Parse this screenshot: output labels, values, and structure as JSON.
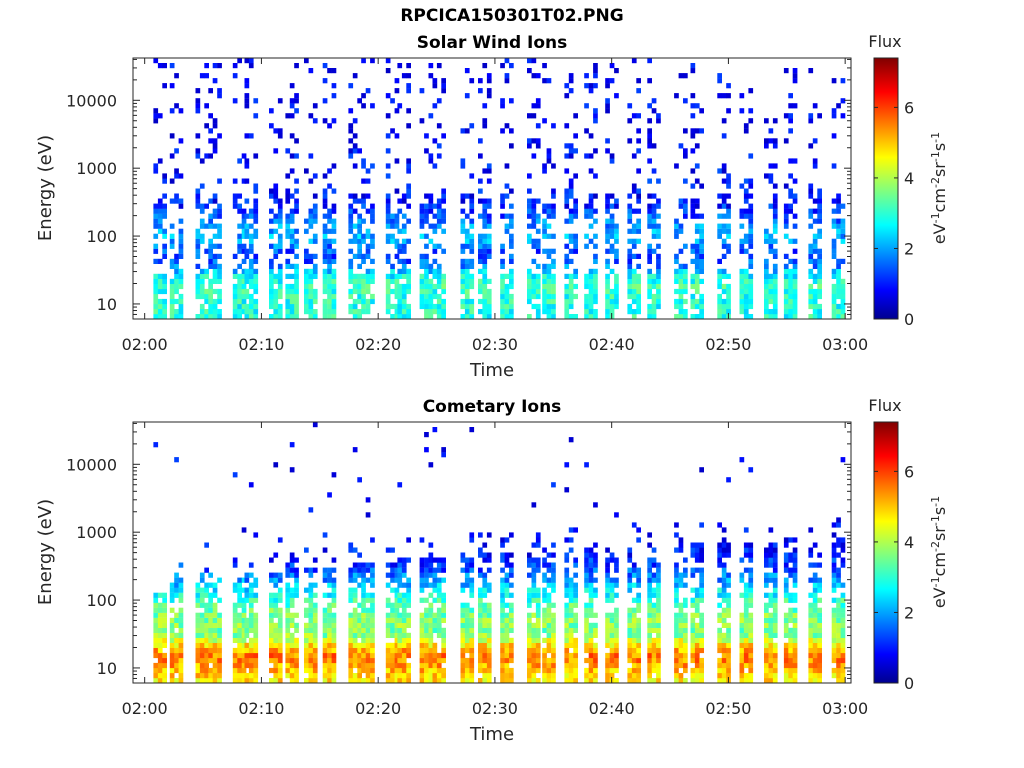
{
  "figure": {
    "title": "RPCICA150301T02.PNG"
  },
  "colors": {
    "axis": "#262626",
    "background": "#ffffff",
    "colormap": "jet"
  },
  "chart_data": [
    {
      "type": "heatmap",
      "title": "Solar Wind Ions",
      "xlabel": "Time",
      "ylabel": "Energy (eV)",
      "y_scale": "log",
      "ylim": [
        6,
        42000
      ],
      "x_ticks": [
        "02:00",
        "02:10",
        "02:20",
        "02:30",
        "02:40",
        "02:50",
        "03:00"
      ],
      "x_tick_values_min": [
        0,
        10,
        20,
        30,
        40,
        50,
        60
      ],
      "xlim_min": [
        -1,
        60.5
      ],
      "y_ticks": [
        "10",
        "100",
        "1000",
        "10000"
      ],
      "y_tick_values": [
        10,
        100,
        1000,
        10000
      ],
      "colorbar": {
        "label_top": "Flux",
        "label": "eV-1cm-2sr-1s-1",
        "ticks": [
          "0",
          "2",
          "4",
          "6"
        ],
        "tick_values": [
          0,
          2,
          4,
          6
        ],
        "clim": [
          0,
          7.4
        ]
      },
      "scan_minutes": [
        1.3,
        2.7,
        4.9,
        6.0,
        8.1,
        9.1,
        11.2,
        12.6,
        14.2,
        15.8,
        18.0,
        19.1,
        21.2,
        22.2,
        24.1,
        25.2,
        27.6,
        29.1,
        31.0,
        33.3,
        34.6,
        36.5,
        38.2,
        40.0,
        41.9,
        43.6,
        45.9,
        47.3,
        49.6,
        51.5,
        53.6,
        55.3,
        57.4,
        59.4
      ],
      "energy_profile": [
        {
          "energy_eV": 8,
          "flux": 3.0
        },
        {
          "energy_eV": 12,
          "flux": 3.0
        },
        {
          "energy_eV": 18,
          "flux": 3.2
        },
        {
          "energy_eV": 26,
          "flux": 2.8
        },
        {
          "energy_eV": 40,
          "flux": 1.6
        },
        {
          "energy_eV": 60,
          "flux": 1.5
        },
        {
          "energy_eV": 90,
          "flux": 2.2
        },
        {
          "energy_eV": 140,
          "flux": 2.0
        },
        {
          "energy_eV": 200,
          "flux": 1.5
        },
        {
          "energy_eV": 300,
          "flux": 1.1
        },
        {
          "energy_eV": 500,
          "flux": 1.0
        },
        {
          "energy_eV": 900,
          "flux": 1.0
        },
        {
          "energy_eV": 1600,
          "flux": 0.9
        },
        {
          "energy_eV": 3000,
          "flux": 0.8
        },
        {
          "energy_eV": 6000,
          "flux": 0.8
        },
        {
          "energy_eV": 12000,
          "flux": 0.8
        },
        {
          "energy_eV": 25000,
          "flux": 0.8
        }
      ],
      "grid": false
    },
    {
      "type": "heatmap",
      "title": "Cometary Ions",
      "xlabel": "Time",
      "ylabel": "Energy (eV)",
      "y_scale": "log",
      "ylim": [
        6,
        42000
      ],
      "x_ticks": [
        "02:00",
        "02:10",
        "02:20",
        "02:30",
        "02:40",
        "02:50",
        "03:00"
      ],
      "x_tick_values_min": [
        0,
        10,
        20,
        30,
        40,
        50,
        60
      ],
      "xlim_min": [
        -1,
        60.5
      ],
      "y_ticks": [
        "10",
        "100",
        "1000",
        "10000"
      ],
      "y_tick_values": [
        10,
        100,
        1000,
        10000
      ],
      "colorbar": {
        "label_top": "Flux",
        "label": "eV-1cm-2sr-1s-1",
        "ticks": [
          "0",
          "2",
          "4",
          "6"
        ],
        "tick_values": [
          0,
          2,
          4,
          6
        ],
        "clim": [
          0,
          7.4
        ]
      },
      "scan_minutes": [
        1.3,
        2.7,
        4.9,
        6.0,
        8.1,
        9.1,
        11.2,
        12.6,
        14.2,
        15.8,
        18.0,
        19.1,
        21.2,
        22.2,
        24.1,
        25.2,
        27.6,
        29.1,
        31.0,
        33.3,
        34.6,
        36.5,
        38.2,
        40.0,
        41.9,
        43.6,
        45.9,
        47.3,
        49.6,
        51.5,
        53.6,
        55.3,
        57.4,
        59.4
      ],
      "energy_profile": [
        {
          "energy_eV": 7,
          "flux": 4.8
        },
        {
          "energy_eV": 10,
          "flux": 5.2
        },
        {
          "energy_eV": 15,
          "flux": 5.6
        },
        {
          "energy_eV": 22,
          "flux": 4.8
        },
        {
          "energy_eV": 32,
          "flux": 3.6
        },
        {
          "energy_eV": 45,
          "flux": 3.8
        },
        {
          "energy_eV": 65,
          "flux": 3.6
        },
        {
          "energy_eV": 95,
          "flux": 3.2
        },
        {
          "energy_eV": 140,
          "flux": 2.6
        },
        {
          "energy_eV": 200,
          "flux": 2.0
        },
        {
          "energy_eV": 300,
          "flux": 1.4
        },
        {
          "energy_eV": 450,
          "flux": 1.1
        },
        {
          "energy_eV": 700,
          "flux": 0.9
        },
        {
          "energy_eV": 1500,
          "flux": 0.8
        },
        {
          "energy_eV": 2500,
          "flux": 0.8
        },
        {
          "energy_eV": 7000,
          "flux": 0.8
        },
        {
          "energy_eV": 12500,
          "flux": 0.8
        }
      ],
      "grid": false
    }
  ]
}
